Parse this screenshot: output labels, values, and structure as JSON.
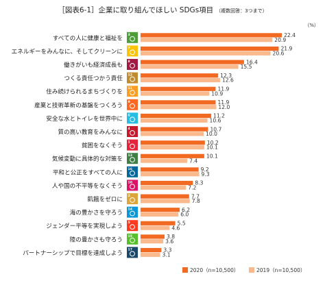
{
  "chart_data": {
    "type": "bar",
    "orientation": "horizontal",
    "title": "［図表6-1］企業に取り組んでほしい SDGs項目",
    "subtitle": "（複数回答：3つまで）",
    "unit": "（%）",
    "legend_position": "bottom-right",
    "grid": false,
    "xlim": [
      0,
      24
    ],
    "categories": [
      "すべての人に健康と福祉を",
      "エネルギーをみんなに、そしてクリーンに",
      "働きがいも経済成長も",
      "つくる責任つかう責任",
      "住み続けられるまちづくりを",
      "産業と技術革新の基盤をつくろう",
      "安全な水とトイレを世界中に",
      "質の高い教育をみんなに",
      "貧困をなくそう",
      "気候変動に具体的な対策を",
      "平和と公正をすべての人に",
      "人や国の不平等をなくそう",
      "飢餓をゼロに",
      "海の豊かさを守ろう",
      "ジェンダー平等を実現しよう",
      "陸の豊かさも守ろう",
      "パートナーシップで目標を達成しよう"
    ],
    "series": [
      {
        "name": "2020（n=10,500）",
        "color": "#f26a21",
        "values": [
          22.4,
          21.9,
          16.4,
          12.3,
          11.9,
          11.9,
          11.2,
          10.7,
          10.2,
          10.1,
          9.2,
          8.3,
          7.7,
          6.2,
          5.5,
          3.8,
          3.3
        ],
        "labels": [
          "22.4",
          "21.9",
          "16.4",
          "12.3",
          "11.9",
          "11.9",
          "11.2",
          "10.7",
          "10.2",
          "10.1",
          "9.2",
          "8.3",
          "7.7",
          "6.2",
          "5.5",
          "3.8",
          "3.3"
        ]
      },
      {
        "name": "2019（n=10,500）",
        "color": "#f9b98c",
        "values": [
          20.9,
          20.6,
          15.5,
          12.6,
          10.9,
          12.0,
          10.6,
          10.0,
          10.1,
          7.4,
          9.3,
          7.2,
          7.8,
          6.0,
          4.6,
          3.6,
          3.1
        ],
        "labels": [
          "20.9",
          "20.6",
          "15.5",
          "12.6",
          "10.9",
          "12.0",
          "10.6",
          "10.0",
          "10.1",
          "7.4",
          "9.3",
          "7.2",
          "7.8",
          "6.0",
          "4.6",
          "3.6",
          "3.1"
        ]
      }
    ],
    "icon_colors": [
      "#4c9f38",
      "#fcc30b",
      "#a21942",
      "#bf8b2e",
      "#fd9d24",
      "#fd6925",
      "#26bde2",
      "#c5192d",
      "#e5243b",
      "#3f7e44",
      "#00689d",
      "#dd1367",
      "#dda63a",
      "#0a97d9",
      "#ff3a21",
      "#56c02b",
      "#19486a"
    ],
    "icon_numbers": [
      "3",
      "7",
      "8",
      "12",
      "11",
      "9",
      "6",
      "4",
      "1",
      "13",
      "16",
      "10",
      "2",
      "14",
      "5",
      "15",
      "17"
    ],
    "icon_names": [
      "sdg-3-good-health-icon",
      "sdg-7-clean-energy-icon",
      "sdg-8-decent-work-icon",
      "sdg-12-responsible-consumption-icon",
      "sdg-11-sustainable-cities-icon",
      "sdg-9-industry-innovation-icon",
      "sdg-6-clean-water-icon",
      "sdg-4-quality-education-icon",
      "sdg-1-no-poverty-icon",
      "sdg-13-climate-action-icon",
      "sdg-16-peace-justice-icon",
      "sdg-10-reduced-inequalities-icon",
      "sdg-2-zero-hunger-icon",
      "sdg-14-life-below-water-icon",
      "sdg-5-gender-equality-icon",
      "sdg-15-life-on-land-icon",
      "sdg-17-partnerships-icon"
    ]
  }
}
